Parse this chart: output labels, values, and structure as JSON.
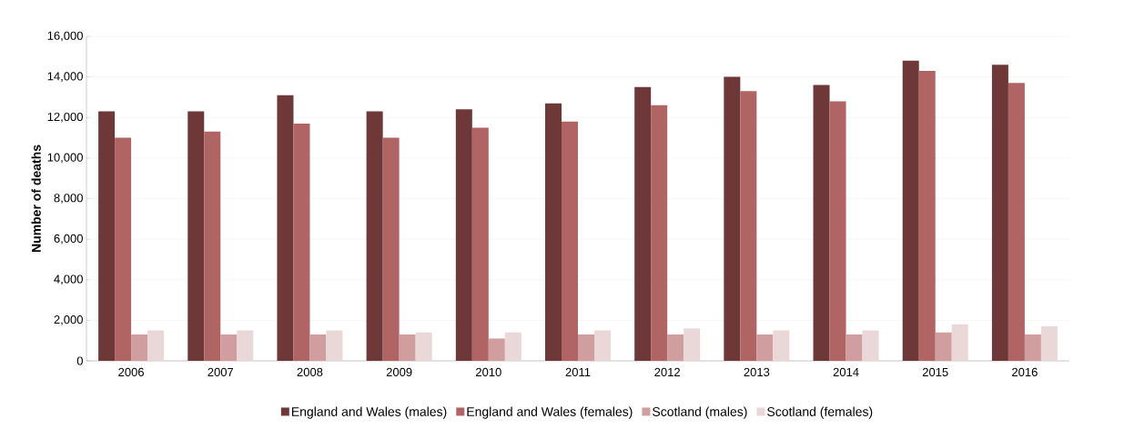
{
  "chart_data": {
    "type": "bar",
    "ylabel": "**Number of deaths**",
    "categories": [
      "2006",
      "2007",
      "2008",
      "2009",
      "2010",
      "2011",
      "2012",
      "2013",
      "2014",
      "2015",
      "2016"
    ],
    "series": [
      {
        "name": "England and Wales (males)",
        "color": "#6f3838",
        "values": [
          12300,
          12300,
          13100,
          12300,
          12400,
          12700,
          13500,
          14000,
          13600,
          14800,
          14600
        ]
      },
      {
        "name": "England and Wales (females)",
        "color": "#b06464",
        "values": [
          11000,
          11300,
          11700,
          11000,
          11500,
          11800,
          12600,
          13300,
          12800,
          14300,
          13700
        ]
      },
      {
        "name": "Scotland (males)",
        "color": "#d09e9e",
        "values": [
          1300,
          1300,
          1300,
          1300,
          1100,
          1300,
          1300,
          1300,
          1300,
          1400,
          1300
        ]
      },
      {
        "name": "Scotland (females)",
        "color": "#ead8d8",
        "values": [
          1500,
          1500,
          1500,
          1400,
          1400,
          1500,
          1600,
          1500,
          1500,
          1800,
          1700
        ]
      }
    ],
    "ylim": [
      0,
      16000
    ],
    "yticks": [
      {
        "value": 0,
        "label": "0"
      },
      {
        "value": 2000,
        "label": "2,000"
      },
      {
        "value": 4000,
        "label": "4,000"
      },
      {
        "value": 6000,
        "label": "6,000"
      },
      {
        "value": 8000,
        "label": "8,000"
      },
      {
        "value": 10000,
        "label": "10,000"
      },
      {
        "value": 12000,
        "label": "12,000"
      },
      {
        "value": 14000,
        "label": "14,000"
      },
      {
        "value": 16000,
        "label": "16,000"
      }
    ],
    "grid": "y",
    "legend": "bottom"
  }
}
